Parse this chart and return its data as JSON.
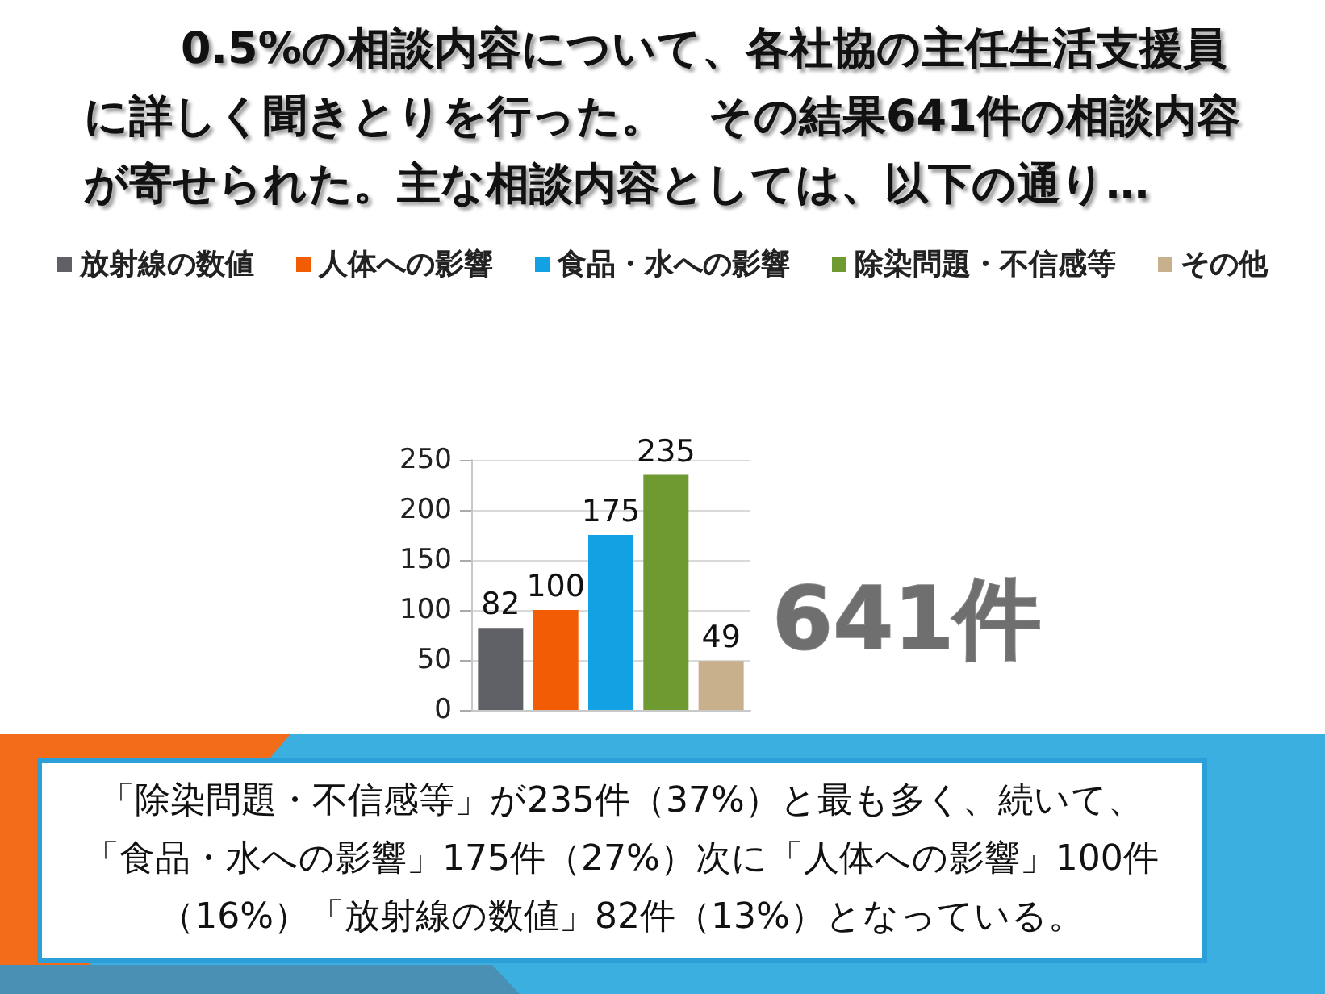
{
  "chart_data": {
    "type": "bar",
    "title": "0.5%の相談内容について、各社協の主任生活支援員に詳しく聞きとりを行った。　その結果641件の相談内容が寄せられた。主な相談内容としては、以下の通り…",
    "categories": [
      null
    ],
    "series": [
      {
        "name": "放射線の数値",
        "color": "#5f6166",
        "values": [
          82
        ]
      },
      {
        "name": "人体への影響",
        "color": "#f25c05",
        "values": [
          100
        ]
      },
      {
        "name": "食品・水への影響",
        "color": "#12a2e4",
        "values": [
          175
        ]
      },
      {
        "name": "除染問題・不信感等",
        "color": "#6f9a32",
        "values": [
          235
        ]
      },
      {
        "name": "その他",
        "color": "#c9b08c",
        "values": [
          49
        ]
      }
    ],
    "ylim": [
      0,
      250
    ],
    "yticks": [
      0,
      50,
      100,
      150,
      200,
      250
    ],
    "grid": "y",
    "legend": "top",
    "data_labels": true,
    "annotations": [
      "641件",
      "「除染問題・不信感等」が235件（37%）と最も多く、続いて、「食品・水への影響」175件（27%）次に「人体への影響」100件（16%）「放射線の数値」82件（13%）となっている。"
    ]
  }
}
